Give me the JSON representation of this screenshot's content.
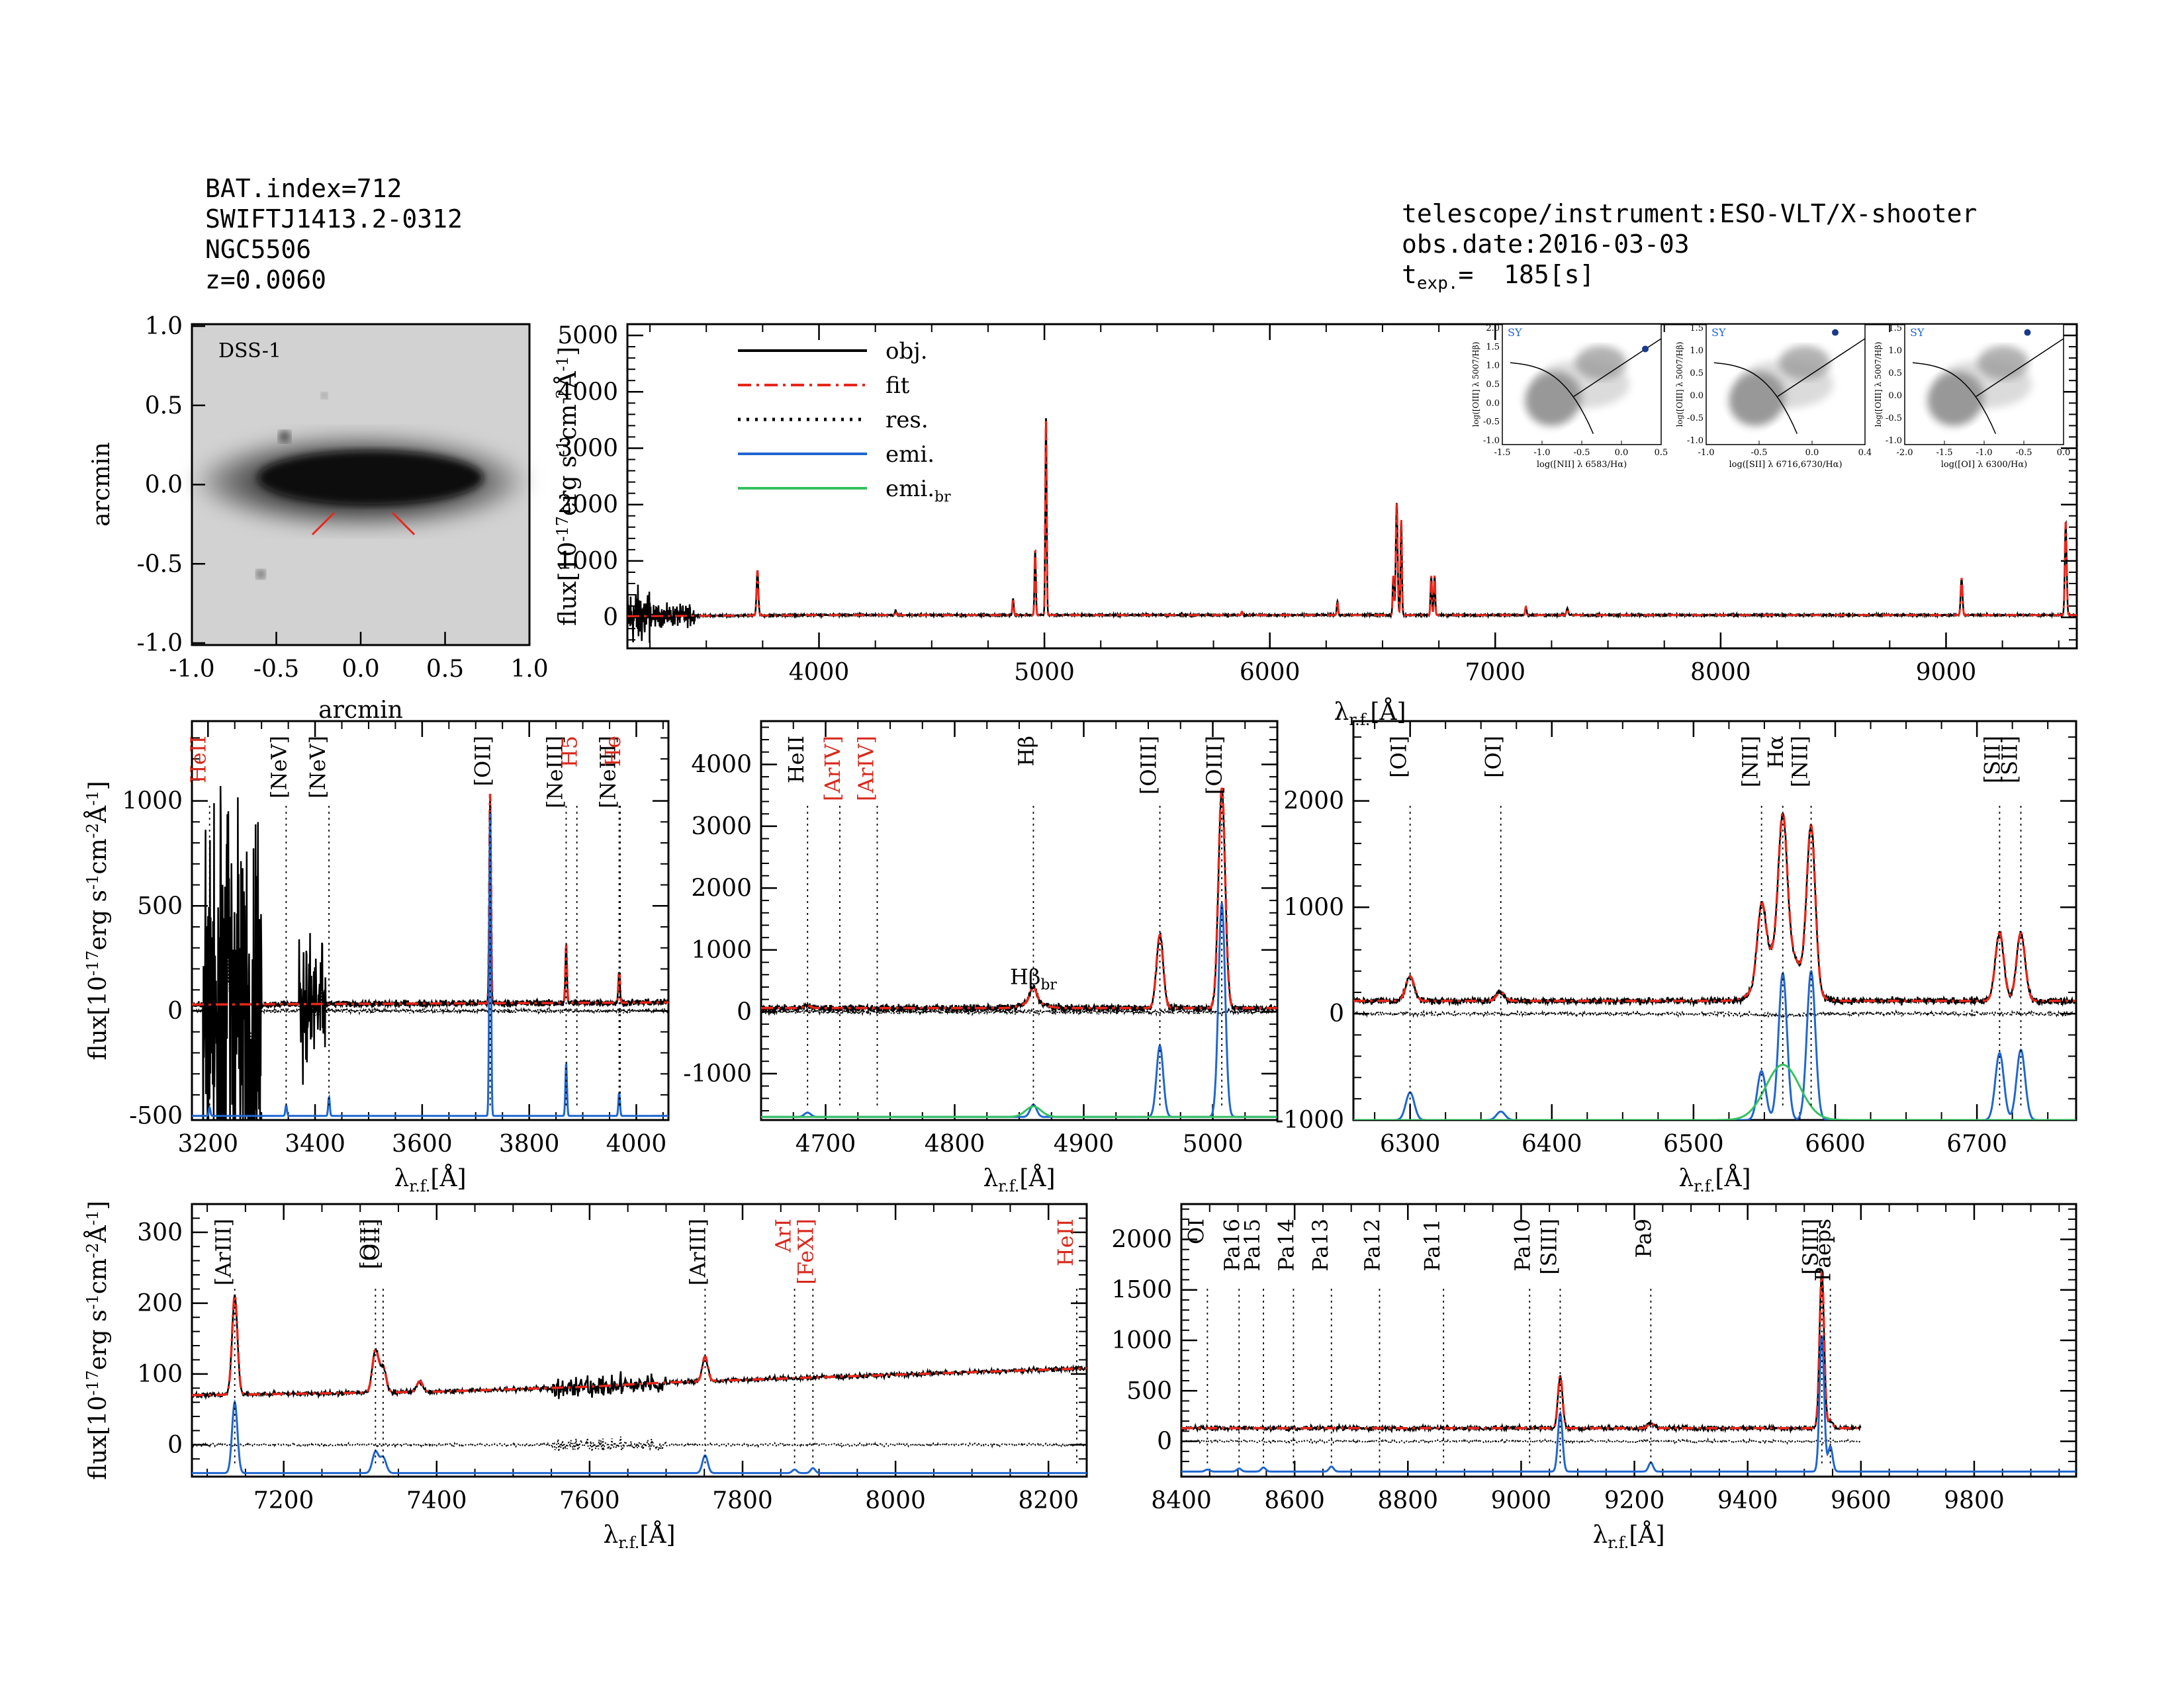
{
  "header": {
    "bat_index": "BAT.index=712",
    "swift_name": "SWIFTJ1413.2-0312",
    "galaxy": "NGC5506",
    "redshift": "z=0.0060",
    "telescope": "telescope/instrument:ESO-VLT/X-shooter",
    "obs_date": "obs.date:2016-03-03",
    "texp_prefix": "t",
    "texp_sub": "exp.",
    "texp_value": "=  185[s]"
  },
  "colors": {
    "obj": "#000000",
    "fit": "#e8261a",
    "res": "#000000",
    "emi": "#1f66d1",
    "emi_br": "#35c160",
    "label_red": "#d8281c"
  },
  "labels": {
    "flux": "flux[10",
    "flux_exp": "-17",
    "flux_unit": "erg s",
    "flux_e1": "-1",
    "flux_cm": "cm",
    "flux_e2": "-2",
    "flux_A": "Å",
    "flux_e3": "-1",
    "flux_close": "]",
    "lambda": "λ",
    "lambda_sub": "r.f.",
    "lambda_unit": "[Å]",
    "arcmin": "arcmin"
  },
  "image_panel": {
    "title": "DSS-1",
    "xticks": [
      "-1.0",
      "-0.5",
      "0.0",
      "0.5",
      "1.0"
    ],
    "yticks": [
      "1.0",
      "0.5",
      "0.0",
      "-0.5",
      "-1.0"
    ]
  },
  "legend": [
    {
      "name": "obj.",
      "style": "solid",
      "color": "#000000"
    },
    {
      "name": "fit",
      "style": "dashdot",
      "color": "#e8261a"
    },
    {
      "name": "res.",
      "style": "dotted",
      "color": "#000000"
    },
    {
      "name": "emi.",
      "style": "solid",
      "color": "#1f66d1"
    },
    {
      "name": "emi.",
      "sub": "br",
      "style": "solid",
      "color": "#35c160"
    }
  ],
  "bpt": [
    {
      "tag": "SY",
      "xlabel": "log([NII] λ 6583/Hα)",
      "ylabel": "log([OIII] λ 5007/Hβ)",
      "xticks": [
        "-1.5",
        "-1.0",
        "-0.5",
        "0.0",
        "0.5"
      ],
      "xlim": [
        -1.5,
        0.5
      ],
      "yticks": [
        "2.0",
        "1.5",
        "1.0",
        "0.5",
        "0.0",
        "-0.5",
        "-1.0"
      ],
      "ylim": [
        -1.2,
        2.2
      ],
      "point": [
        0.3,
        1.5
      ]
    },
    {
      "tag": "SY",
      "xlabel": "log([SII] λ 6716,6730/Hα)",
      "ylabel": "log([OIII] λ 5007/Hβ)",
      "xticks": [
        "-1.0",
        "-0.5",
        "0.0",
        "0.4"
      ],
      "xlim": [
        -1.2,
        0.4
      ],
      "yticks": [
        "1.5",
        "1.0",
        "0.5",
        "0.0",
        "-0.5",
        "-1.0"
      ],
      "ylim": [
        -1.2,
        1.7
      ],
      "point": [
        0.1,
        1.5
      ]
    },
    {
      "tag": "SY",
      "xlabel": "log([OI] λ 6300/Hα)",
      "ylabel": "log([OIII] λ 5007/Hβ)",
      "xticks": [
        "-2.0",
        "-1.5",
        "-1.0",
        "-0.5",
        "0.0"
      ],
      "xlim": [
        -2.2,
        0.0
      ],
      "yticks": [
        "1.5",
        "1.0",
        "0.5",
        "0.0",
        "-0.5",
        "-1.0"
      ],
      "ylim": [
        -1.2,
        1.7
      ],
      "point": [
        -0.5,
        1.5
      ]
    }
  ],
  "chart_data": [
    {
      "type": "line",
      "id": "overview",
      "xlim": [
        3150,
        9580
      ],
      "ylim": [
        -550,
        5200
      ],
      "xticks": [
        4000,
        5000,
        6000,
        7000,
        8000,
        9000
      ],
      "yticks": [
        0,
        1000,
        2000,
        3000,
        4000,
        5000
      ],
      "continuum": {
        "x": [
          3150,
          4000,
          6000,
          9580
        ],
        "y": [
          20,
          40,
          40,
          40
        ]
      },
      "lines": [
        {
          "x": 3727,
          "amp": 800,
          "sigma": 4
        },
        {
          "x": 4340,
          "amp": 80,
          "sigma": 3
        },
        {
          "x": 4861,
          "amp": 300,
          "sigma": 3
        },
        {
          "x": 4959,
          "amp": 1150,
          "sigma": 3
        },
        {
          "x": 5007,
          "amp": 3550,
          "sigma": 3
        },
        {
          "x": 5876,
          "amp": 60,
          "sigma": 3
        },
        {
          "x": 6300,
          "amp": 250,
          "sigma": 3
        },
        {
          "x": 6548,
          "amp": 700,
          "sigma": 3
        },
        {
          "x": 6563,
          "amp": 2000,
          "sigma": 4
        },
        {
          "x": 6583,
          "amp": 1700,
          "sigma": 3
        },
        {
          "x": 6716,
          "amp": 700,
          "sigma": 3
        },
        {
          "x": 6731,
          "amp": 700,
          "sigma": 3
        },
        {
          "x": 7136,
          "amp": 150,
          "sigma": 3
        },
        {
          "x": 7320,
          "amp": 120,
          "sigma": 4
        },
        {
          "x": 9069,
          "amp": 650,
          "sigma": 4
        },
        {
          "x": 9531,
          "amp": 1650,
          "sigma": 4
        }
      ]
    },
    {
      "type": "line",
      "id": "blue",
      "xlim": [
        3170,
        4060
      ],
      "ylim": [
        -520,
        1380
      ],
      "xticks": [
        3200,
        3400,
        3600,
        3800,
        4000
      ],
      "yticks": [
        -500,
        0,
        500,
        1000
      ],
      "continuum": {
        "x": [
          3170,
          4060
        ],
        "y": [
          30,
          40
        ]
      },
      "fit_lines": [
        {
          "x": 3727,
          "amp": 1000,
          "sigma": 1.6
        },
        {
          "x": 3869,
          "amp": 270,
          "sigma": 1.5
        },
        {
          "x": 3968,
          "amp": 150,
          "sigma": 1.5
        }
      ],
      "emi_lines": [
        {
          "x": 3203,
          "amp": 40,
          "sigma": 1.5
        },
        {
          "x": 3346,
          "amp": 50,
          "sigma": 1.5
        },
        {
          "x": 3426,
          "amp": 90,
          "sigma": 1.5
        },
        {
          "x": 3727,
          "amp": 1450,
          "sigma": 1.6
        },
        {
          "x": 3869,
          "amp": 250,
          "sigma": 1.5
        },
        {
          "x": 3968,
          "amp": 110,
          "sigma": 1.5
        }
      ],
      "emi_offset": -500,
      "markers": [
        {
          "x": 3203,
          "label": "HeII",
          "color": "red"
        },
        {
          "x": 3346,
          "label": "[NeV]",
          "color": "black"
        },
        {
          "x": 3426,
          "label": "[NeV]",
          "color": "black"
        },
        {
          "x": 3727,
          "label": "[OII]",
          "color": "black"
        },
        {
          "x": 3869,
          "label": "[NeIII]",
          "color": "black"
        },
        {
          "x": 3889,
          "label": "H5",
          "color": "red"
        },
        {
          "x": 3968,
          "label": "[NeIII]",
          "color": "black"
        },
        {
          "x": 3970,
          "label": "He",
          "color": "red"
        }
      ]
    },
    {
      "type": "line",
      "id": "hbeta",
      "xlim": [
        4650,
        5050
      ],
      "ylim": [
        -1750,
        4700
      ],
      "xticks": [
        4700,
        4800,
        4900,
        5000
      ],
      "yticks": [
        -1000,
        0,
        1000,
        2000,
        3000,
        4000
      ],
      "continuum": {
        "x": [
          4650,
          5050
        ],
        "y": [
          60,
          60
        ]
      },
      "fit_lines": [
        {
          "x": 4686,
          "amp": 40,
          "sigma": 2.5
        },
        {
          "x": 4861,
          "amp": 240,
          "sigma": 2.5
        },
        {
          "x": 4861,
          "amp": 100,
          "sigma": 8
        },
        {
          "x": 4959,
          "amp": 1180,
          "sigma": 2.6
        },
        {
          "x": 5007,
          "amp": 3550,
          "sigma": 2.6
        }
      ],
      "emi_lines": [
        {
          "x": 4686,
          "amp": 70,
          "sigma": 2.5
        },
        {
          "x": 4861,
          "amp": 200,
          "sigma": 2.5
        },
        {
          "x": 4959,
          "amp": 1150,
          "sigma": 2.6
        },
        {
          "x": 5007,
          "amp": 3450,
          "sigma": 2.6
        }
      ],
      "emibr_lines": [
        {
          "x": 4861,
          "amp": 170,
          "sigma": 6
        }
      ],
      "emi_offset": -1700,
      "markers": [
        {
          "x": 4686,
          "label": "HeII",
          "color": "black"
        },
        {
          "x": 4711,
          "label": "[ArIV]",
          "color": "red"
        },
        {
          "x": 4740,
          "label": "[ArIV]",
          "color": "red"
        },
        {
          "x": 4861,
          "label": "Hβ",
          "color": "black"
        },
        {
          "x": 4959,
          "label": "[OIII]",
          "color": "black"
        },
        {
          "x": 5007,
          "label": "[OIII]",
          "color": "black"
        }
      ],
      "annotation": {
        "x": 4861,
        "y": 450,
        "label": "Hβ",
        "sub": "br"
      }
    },
    {
      "type": "line",
      "id": "halpha",
      "xlim": [
        6260,
        6770
      ],
      "ylim": [
        -1000,
        2750
      ],
      "xticks": [
        6300,
        6400,
        6500,
        6600,
        6700
      ],
      "yticks": [
        -1000,
        0,
        1000,
        2000
      ],
      "continuum": {
        "x": [
          6260,
          6770
        ],
        "y": [
          120,
          120
        ]
      },
      "fit_lines": [
        {
          "x": 6300,
          "amp": 230,
          "sigma": 3
        },
        {
          "x": 6364,
          "amp": 80,
          "sigma": 3
        },
        {
          "x": 6548,
          "amp": 680,
          "sigma": 3
        },
        {
          "x": 6563,
          "amp": 1250,
          "sigma": 3
        },
        {
          "x": 6563,
          "amp": 520,
          "sigma": 12
        },
        {
          "x": 6583,
          "amp": 1520,
          "sigma": 3
        },
        {
          "x": 6716,
          "amp": 640,
          "sigma": 3
        },
        {
          "x": 6731,
          "amp": 640,
          "sigma": 3
        }
      ],
      "emi_lines": [
        {
          "x": 6300,
          "amp": 260,
          "sigma": 3
        },
        {
          "x": 6364,
          "amp": 80,
          "sigma": 3
        },
        {
          "x": 6548,
          "amp": 460,
          "sigma": 3
        },
        {
          "x": 6563,
          "amp": 1380,
          "sigma": 3
        },
        {
          "x": 6583,
          "amp": 1400,
          "sigma": 3
        },
        {
          "x": 6716,
          "amp": 630,
          "sigma": 3
        },
        {
          "x": 6731,
          "amp": 660,
          "sigma": 3
        }
      ],
      "emibr_lines": [
        {
          "x": 6563,
          "amp": 520,
          "sigma": 12
        }
      ],
      "emi_offset": -1000,
      "markers": [
        {
          "x": 6300,
          "label": "[OI]",
          "color": "black"
        },
        {
          "x": 6364,
          "label": "[OI]",
          "color": "black"
        },
        {
          "x": 6548,
          "label": "[NII]",
          "color": "black"
        },
        {
          "x": 6563,
          "label": "Hα",
          "color": "black"
        },
        {
          "x": 6583,
          "label": "[NII]",
          "color": "black"
        },
        {
          "x": 6716,
          "label": "[SII]",
          "color": "black"
        },
        {
          "x": 6731,
          "label": "[SII]",
          "color": "black"
        }
      ]
    },
    {
      "type": "line",
      "id": "red",
      "xlim": [
        7080,
        8250
      ],
      "ylim": [
        -45,
        340
      ],
      "xticks": [
        7200,
        7400,
        7600,
        7800,
        8000,
        8200
      ],
      "yticks": [
        0,
        100,
        200,
        300
      ],
      "continuum": {
        "x": [
          7080,
          7400,
          7600,
          7700,
          8250
        ],
        "y": [
          70,
          75,
          82,
          88,
          108
        ]
      },
      "fit_lines": [
        {
          "x": 7136,
          "amp": 140,
          "sigma": 3.5
        },
        {
          "x": 7320,
          "amp": 60,
          "sigma": 4
        },
        {
          "x": 7330,
          "amp": 35,
          "sigma": 4
        },
        {
          "x": 7378,
          "amp": 15,
          "sigma": 4
        },
        {
          "x": 7751,
          "amp": 35,
          "sigma": 3.5
        }
      ],
      "emi_lines": [
        {
          "x": 7136,
          "amp": 100,
          "sigma": 3.5
        },
        {
          "x": 7320,
          "amp": 30,
          "sigma": 4
        },
        {
          "x": 7330,
          "amp": 22,
          "sigma": 4
        },
        {
          "x": 7751,
          "amp": 25,
          "sigma": 3.5
        },
        {
          "x": 7868,
          "amp": 5,
          "sigma": 3
        },
        {
          "x": 7892,
          "amp": 7,
          "sigma": 3
        }
      ],
      "emi_offset": -40,
      "res_offset": 0,
      "markers": [
        {
          "x": 7136,
          "label": "[ArIII]",
          "color": "black"
        },
        {
          "x": 7320,
          "label": "[OII]",
          "color": "black"
        },
        {
          "x": 7330,
          "label": "[OII]",
          "color": "black"
        },
        {
          "x": 7751,
          "label": "[ArIII]",
          "color": "black"
        },
        {
          "x": 7868,
          "label": "ArI",
          "color": "red"
        },
        {
          "x": 7892,
          "label": "[FeXI]",
          "color": "red"
        },
        {
          "x": 8237,
          "label": "HeII",
          "color": "red"
        }
      ]
    },
    {
      "type": "line",
      "id": "nir",
      "xlim": [
        8400,
        9980
      ],
      "ylim": [
        -350,
        2350
      ],
      "xticks": [
        8400,
        8600,
        8800,
        9000,
        9200,
        9400,
        9600,
        9800
      ],
      "yticks": [
        0,
        500,
        1000,
        1500,
        2000
      ],
      "data_end": 9600,
      "continuum": {
        "x": [
          8400,
          9600
        ],
        "y": [
          130,
          130
        ]
      },
      "fit_lines": [
        {
          "x": 9069,
          "amp": 520,
          "sigma": 4
        },
        {
          "x": 9229,
          "amp": 50,
          "sigma": 5
        },
        {
          "x": 9531,
          "amp": 1550,
          "sigma": 4
        },
        {
          "x": 9546,
          "amp": 80,
          "sigma": 4
        }
      ],
      "emi_lines": [
        {
          "x": 8446,
          "amp": 20,
          "sigma": 4
        },
        {
          "x": 8502,
          "amp": 30,
          "sigma": 4
        },
        {
          "x": 8545,
          "amp": 40,
          "sigma": 4
        },
        {
          "x": 8665,
          "amp": 50,
          "sigma": 4
        },
        {
          "x": 9069,
          "amp": 580,
          "sigma": 4
        },
        {
          "x": 9229,
          "amp": 90,
          "sigma": 4
        },
        {
          "x": 9531,
          "amp": 1350,
          "sigma": 4
        },
        {
          "x": 9546,
          "amp": 250,
          "sigma": 4
        }
      ],
      "emi_offset": -300,
      "markers": [
        {
          "x": 8446,
          "label": "OI",
          "color": "black"
        },
        {
          "x": 8502,
          "label": "Pa16",
          "color": "black"
        },
        {
          "x": 8545,
          "label": "Pa15",
          "color": "black"
        },
        {
          "x": 8598,
          "label": "Pa14",
          "color": "black"
        },
        {
          "x": 8665,
          "label": "Pa13",
          "color": "black"
        },
        {
          "x": 8750,
          "label": "Pa12",
          "color": "black"
        },
        {
          "x": 8863,
          "label": "Pa11",
          "color": "black"
        },
        {
          "x": 9015,
          "label": "Pa10",
          "color": "black"
        },
        {
          "x": 9069,
          "label": "[SIII]",
          "color": "black"
        },
        {
          "x": 9229,
          "label": "Pa9",
          "color": "black"
        },
        {
          "x": 9531,
          "label": "[SIII]",
          "color": "black"
        },
        {
          "x": 9546,
          "label": "Paeps",
          "color": "black"
        }
      ]
    }
  ]
}
